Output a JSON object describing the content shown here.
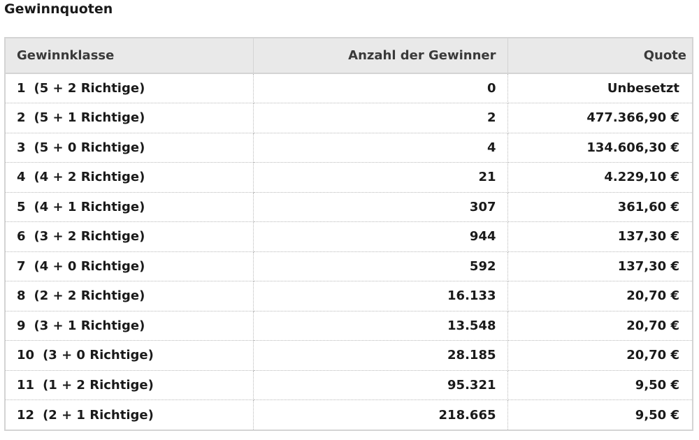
{
  "title": "Gewinnquoten",
  "table": {
    "headers": [
      "Gewinnklasse",
      "Anzahl der Gewinner",
      "Quote"
    ],
    "rows": [
      {
        "klasse": "1",
        "richtige": "(5 + 2 Richtige)",
        "gewinner": "0",
        "quote": "Unbesetzt"
      },
      {
        "klasse": "2",
        "richtige": "(5 + 1 Richtige)",
        "gewinner": "2",
        "quote": "477.366,90 €"
      },
      {
        "klasse": "3",
        "richtige": "(5 + 0 Richtige)",
        "gewinner": "4",
        "quote": "134.606,30 €"
      },
      {
        "klasse": "4",
        "richtige": "(4 + 2 Richtige)",
        "gewinner": "21",
        "quote": "4.229,10 €"
      },
      {
        "klasse": "5",
        "richtige": "(4 + 1 Richtige)",
        "gewinner": "307",
        "quote": "361,60 €"
      },
      {
        "klasse": "6",
        "richtige": "(3 + 2 Richtige)",
        "gewinner": "944",
        "quote": "137,30 €"
      },
      {
        "klasse": "7",
        "richtige": "(4 + 0 Richtige)",
        "gewinner": "592",
        "quote": "137,30 €"
      },
      {
        "klasse": "8",
        "richtige": "(2 + 2 Richtige)",
        "gewinner": "16.133",
        "quote": "20,70 €"
      },
      {
        "klasse": "9",
        "richtige": "(3 + 1 Richtige)",
        "gewinner": "13.548",
        "quote": "20,70 €"
      },
      {
        "klasse": "10",
        "richtige": "(3 + 0 Richtige)",
        "gewinner": "28.185",
        "quote": "20,70 €"
      },
      {
        "klasse": "11",
        "richtige": "(1 + 2 Richtige)",
        "gewinner": "95.321",
        "quote": "9,50 €"
      },
      {
        "klasse": "12",
        "richtige": "(2 + 1 Richtige)",
        "gewinner": "218.665",
        "quote": "9,50 €"
      }
    ]
  }
}
